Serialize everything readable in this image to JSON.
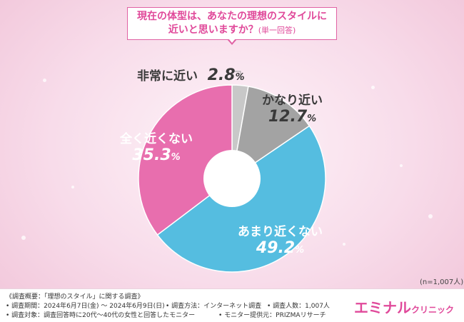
{
  "title": {
    "line1": "現在の体型は、あなたの理想のスタイルに",
    "line2": "近いと思いますか？",
    "line2_note": "(単一回答)"
  },
  "chart_data": {
    "type": "pie",
    "donut": true,
    "categories": [
      "非常に近い",
      "かなり近い",
      "あまり近くない",
      "全く近くない"
    ],
    "values": [
      2.8,
      12.7,
      49.2,
      35.3
    ],
    "value_labels": [
      "2.8",
      "12.7",
      "49.2",
      "35.3"
    ],
    "unit": "%",
    "colors": [
      "#c8c8c8",
      "#a3a3a3",
      "#55bde0",
      "#e86eae"
    ],
    "start_angle_deg": 0,
    "direction": "clockwise"
  },
  "n_label": "(n=1,007人)",
  "footer": {
    "line1": "《調査概要：「理想のスタイル」に関する調査》",
    "period": "• 調査期間：2024年6月7日(金) ～ 2024年6月9日(日)",
    "method": "• 調査方法：インターネット調査",
    "count": "• 調査人数：1,007人",
    "target": "• 調査対象：調査回答時に20代～40代の女性と回答したモニター",
    "provider": "• モニター提供元：PRIZMAリサーチ",
    "brand_main": "エミナル",
    "brand_sub": "クリニック"
  }
}
